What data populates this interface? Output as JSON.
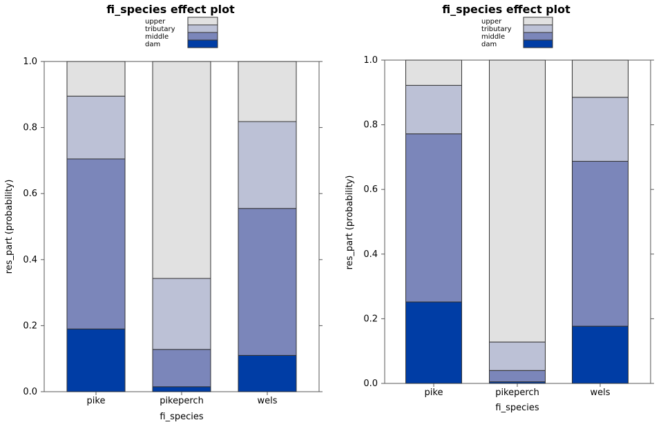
{
  "chart_data": [
    {
      "type": "bar",
      "stacked": true,
      "title": "fi_species effect plot",
      "xlabel": "fi_species",
      "ylabel": "res_part (probability)",
      "ylim": [
        0,
        1
      ],
      "yticks": [
        "0.0",
        "0.2",
        "0.4",
        "0.6",
        "0.8",
        "1.0"
      ],
      "categories": [
        "pike",
        "pikeperch",
        "wels"
      ],
      "legend_position": "top",
      "series": [
        {
          "name": "dam",
          "color": "#003DA5",
          "values": [
            0.19,
            0.015,
            0.11
          ]
        },
        {
          "name": "middle",
          "color": "#7B86BA",
          "values": [
            0.515,
            0.113,
            0.445
          ]
        },
        {
          "name": "tributary",
          "color": "#BCC1D6",
          "values": [
            0.19,
            0.215,
            0.263
          ]
        },
        {
          "name": "upper",
          "color": "#E1E1E1",
          "values": [
            0.105,
            0.657,
            0.182
          ]
        }
      ]
    },
    {
      "type": "bar",
      "stacked": true,
      "title": "fi_species effect plot",
      "xlabel": "fi_species",
      "ylabel": "res_part (probability)",
      "ylim": [
        0,
        1
      ],
      "yticks": [
        "0.0",
        "0.2",
        "0.4",
        "0.6",
        "0.8",
        "1.0"
      ],
      "categories": [
        "pike",
        "pikeperch",
        "wels"
      ],
      "legend_position": "top",
      "series": [
        {
          "name": "dam",
          "color": "#003DA5",
          "values": [
            0.252,
            0.005,
            0.177
          ]
        },
        {
          "name": "middle",
          "color": "#7B86BA",
          "values": [
            0.52,
            0.035,
            0.51
          ]
        },
        {
          "name": "tributary",
          "color": "#BCC1D6",
          "values": [
            0.15,
            0.088,
            0.198
          ]
        },
        {
          "name": "upper",
          "color": "#E1E1E1",
          "values": [
            0.078,
            0.872,
            0.115
          ]
        }
      ]
    }
  ]
}
